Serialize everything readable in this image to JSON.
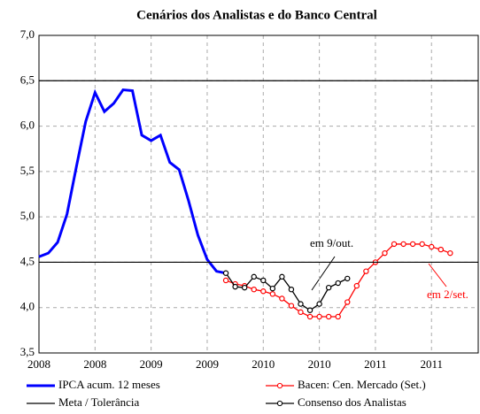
{
  "chart_data": {
    "type": "line",
    "title": "Cenários dos Analistas e do Banco Central",
    "xlim": [
      0,
      47
    ],
    "xticks": [
      {
        "value": 0,
        "label": "2008"
      },
      {
        "value": 6,
        "label": "2008"
      },
      {
        "value": 12,
        "label": "2009"
      },
      {
        "value": 18,
        "label": "2009"
      },
      {
        "value": 24,
        "label": "2010"
      },
      {
        "value": 30,
        "label": "2010"
      },
      {
        "value": 36,
        "label": "2011"
      },
      {
        "value": 42,
        "label": "2011"
      }
    ],
    "ylim": [
      3.5,
      7.0
    ],
    "yticks": [
      {
        "value": 3.5,
        "label": "3,5"
      },
      {
        "value": 4.0,
        "label": "4,0"
      },
      {
        "value": 4.5,
        "label": "4,5"
      },
      {
        "value": 5.0,
        "label": "5,0"
      },
      {
        "value": 5.5,
        "label": "5,5"
      },
      {
        "value": 6.0,
        "label": "6,0"
      },
      {
        "value": 6.5,
        "label": "6,5"
      },
      {
        "value": 7.0,
        "label": "7,0"
      }
    ],
    "grid": true,
    "series": [
      {
        "name": "IPCA acum. 12 meses",
        "color": "#0000ff",
        "marker": "none",
        "x": [
          0,
          1,
          2,
          3,
          4,
          5,
          6,
          7,
          8,
          9,
          10,
          11,
          12,
          13,
          14,
          15,
          16,
          17,
          18,
          19,
          20
        ],
        "values": [
          4.56,
          4.6,
          4.72,
          5.03,
          5.55,
          6.05,
          6.37,
          6.16,
          6.25,
          6.4,
          6.39,
          5.9,
          5.84,
          5.9,
          5.6,
          5.52,
          5.18,
          4.8,
          4.53,
          4.4,
          4.38
        ]
      },
      {
        "name": "Bacen: Cen. Mercado (Set.)",
        "color": "#ff0000",
        "marker": "circle",
        "x": [
          20,
          21,
          22,
          23,
          24,
          25,
          26,
          27,
          28,
          29,
          30,
          31,
          32,
          33,
          34,
          35,
          36,
          37,
          38,
          39,
          40,
          41,
          42,
          43,
          44
        ],
        "values": [
          4.3,
          4.26,
          4.24,
          4.2,
          4.18,
          4.15,
          4.1,
          4.02,
          3.95,
          3.9,
          3.9,
          3.9,
          3.9,
          4.06,
          4.24,
          4.4,
          4.5,
          4.6,
          4.7,
          4.7,
          4.7,
          4.7,
          4.67,
          4.64,
          4.6
        ]
      },
      {
        "name": "Meta / Tolerância",
        "color": "#000000",
        "hlines": [
          4.5,
          6.5
        ]
      },
      {
        "name": "Consenso dos Analistas",
        "color": "#000000",
        "marker": "circle",
        "x": [
          20,
          21,
          22,
          23,
          24,
          25,
          26,
          27,
          28,
          29,
          30,
          31,
          32,
          33
        ],
        "values": [
          4.38,
          4.23,
          4.22,
          4.34,
          4.3,
          4.21,
          4.34,
          4.2,
          4.04,
          3.97,
          4.04,
          4.22,
          4.27,
          4.32
        ]
      }
    ],
    "annotations": [
      {
        "text": "em 9/out.",
        "color": "#000000"
      },
      {
        "text": "em 2/set.",
        "color": "#ff0000"
      }
    ]
  }
}
